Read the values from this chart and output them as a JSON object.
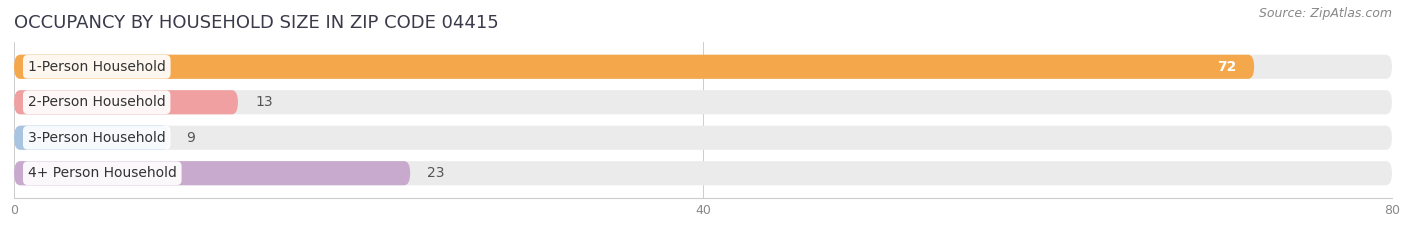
{
  "title": "OCCUPANCY BY HOUSEHOLD SIZE IN ZIP CODE 04415",
  "source": "Source: ZipAtlas.com",
  "categories": [
    "1-Person Household",
    "2-Person Household",
    "3-Person Household",
    "4+ Person Household"
  ],
  "values": [
    72,
    13,
    9,
    23
  ],
  "bar_colors": [
    "#F5A84B",
    "#F0A0A0",
    "#A8C4E0",
    "#C8AACF"
  ],
  "xlim": [
    0,
    80
  ],
  "xticks": [
    0,
    40,
    80
  ],
  "background_color": "#ffffff",
  "bar_bg_color": "#ebebeb",
  "title_fontsize": 13,
  "source_fontsize": 9,
  "label_fontsize": 10,
  "value_fontsize": 10,
  "bar_height": 0.68,
  "rounding": 0.35
}
